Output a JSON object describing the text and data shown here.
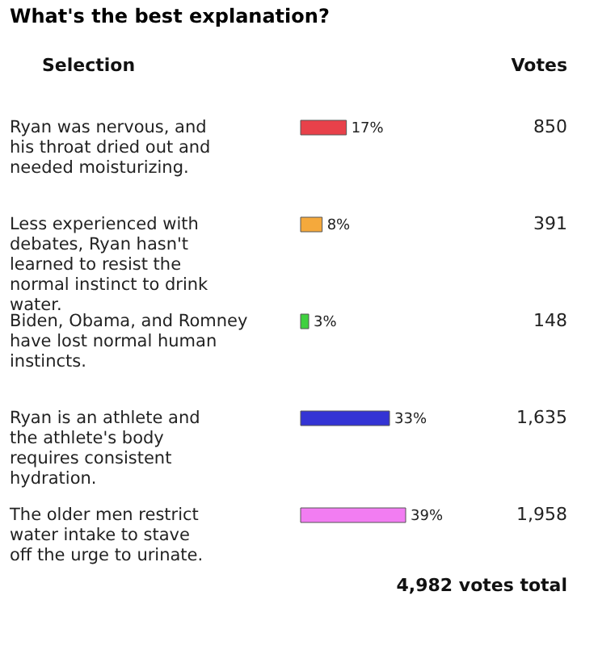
{
  "chart_data": {
    "type": "bar",
    "orientation": "horizontal",
    "title": "What's the best explanation?",
    "ylabel": "Selection",
    "categories": [
      "Ryan was nervous, and his throat dried out and needed moisturizing.",
      "Less experienced with debates, Ryan hasn't learned to resist the normal instinct to drink water.",
      "Biden, Obama, and Romney have lost normal human instincts.",
      "Ryan is an athlete and the athlete's body requires consistent hydration.",
      "The older men restrict water intake to stave off the urge to urinate."
    ],
    "values": [
      17,
      8,
      3,
      33,
      39
    ],
    "colors": [
      "#e8414a",
      "#f5a93c",
      "#3fd13f",
      "#3434d4",
      "#f27df2"
    ],
    "value_labels": [
      "17%",
      "8%",
      "3%",
      "33%",
      "39%"
    ],
    "annotations": [
      "Votes",
      "850",
      "391",
      "148",
      "1,635",
      "1,958",
      "4,982 votes total"
    ]
  }
}
